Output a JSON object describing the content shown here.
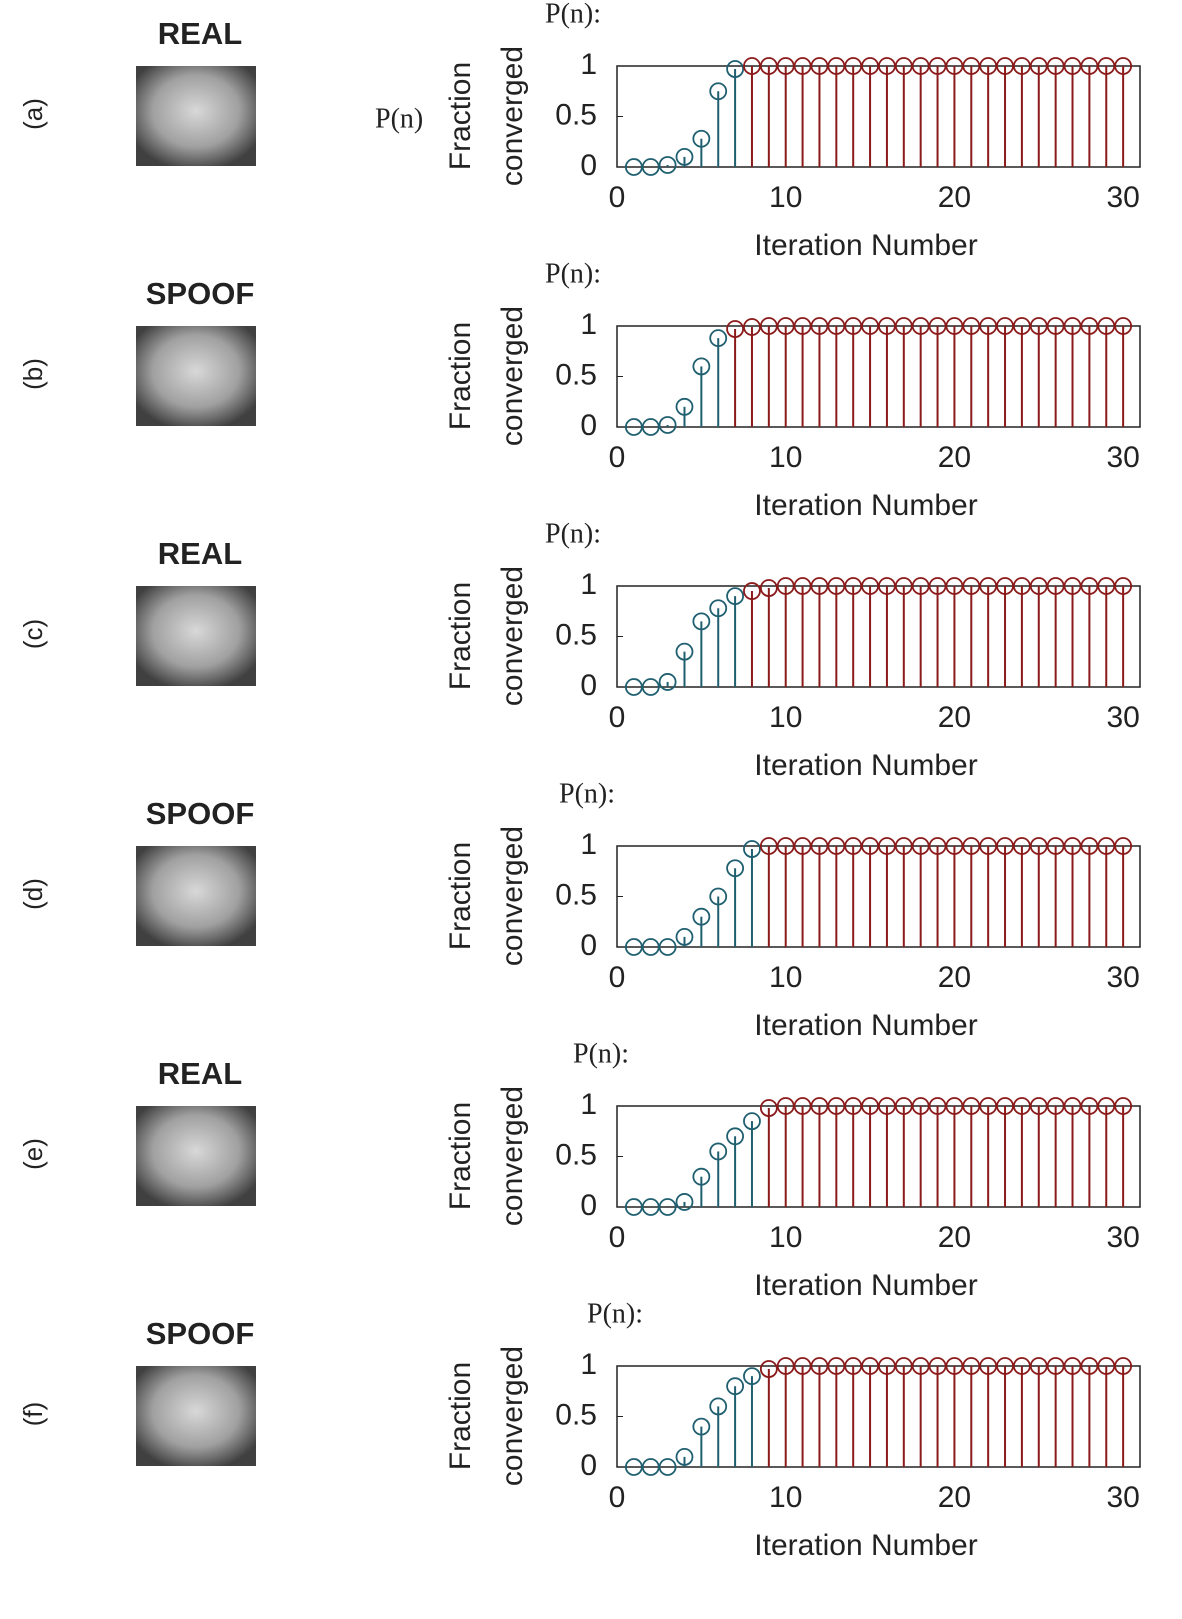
{
  "panels": [
    {
      "label": "(a)",
      "caption": "REAL",
      "side_note": "P(n)"
    },
    {
      "label": "(b)",
      "caption": "SPOOF"
    },
    {
      "label": "(c)",
      "caption": "REAL"
    },
    {
      "label": "(d)",
      "caption": "SPOOF"
    },
    {
      "label": "(e)",
      "caption": "REAL"
    },
    {
      "label": "(f)",
      "caption": "SPOOF"
    }
  ],
  "chart_data": [
    {
      "type": "stem",
      "annotation": "P(n):",
      "ylabel": [
        "Fraction",
        "converged"
      ],
      "xlabel": "Iteration Number",
      "xlim": [
        0,
        31
      ],
      "xticks": [
        0,
        10,
        20,
        30
      ],
      "ylim": [
        0,
        1
      ],
      "yticks": [
        0,
        0.5,
        1
      ],
      "series": [
        {
          "color": "#1f5f70",
          "x": [
            1,
            2,
            3,
            4,
            5,
            6,
            7
          ],
          "values": [
            0,
            0,
            0.02,
            0.1,
            0.28,
            0.75,
            0.97
          ]
        },
        {
          "color": "#8b1a1a",
          "x": [
            8,
            9,
            10,
            11,
            12,
            13,
            14,
            15,
            16,
            17,
            18,
            19,
            20,
            21,
            22,
            23,
            24,
            25,
            26,
            27,
            28,
            29,
            30
          ],
          "values": [
            1,
            1,
            1,
            1,
            1,
            1,
            1,
            1,
            1,
            1,
            1,
            1,
            1,
            1,
            1,
            1,
            1,
            1,
            1,
            1,
            1,
            1,
            1
          ]
        }
      ]
    },
    {
      "type": "stem",
      "annotation": "P(n):",
      "ylabel": [
        "Fraction",
        "converged"
      ],
      "xlabel": "Iteration Number",
      "xlim": [
        0,
        31
      ],
      "xticks": [
        0,
        10,
        20,
        30
      ],
      "ylim": [
        0,
        1
      ],
      "yticks": [
        0,
        0.5,
        1
      ],
      "series": [
        {
          "color": "#1f5f70",
          "x": [
            1,
            2,
            3,
            4,
            5,
            6
          ],
          "values": [
            0,
            0,
            0.02,
            0.2,
            0.6,
            0.88
          ]
        },
        {
          "color": "#8b1a1a",
          "x": [
            7,
            8,
            9,
            10,
            11,
            12,
            13,
            14,
            15,
            16,
            17,
            18,
            19,
            20,
            21,
            22,
            23,
            24,
            25,
            26,
            27,
            28,
            29,
            30
          ],
          "values": [
            0.97,
            0.99,
            1,
            1,
            1,
            1,
            1,
            1,
            1,
            1,
            1,
            1,
            1,
            1,
            1,
            1,
            1,
            1,
            1,
            1,
            1,
            1,
            1,
            1
          ]
        }
      ]
    },
    {
      "type": "stem",
      "annotation": "P(n):",
      "ylabel": [
        "Fraction",
        "converged"
      ],
      "xlabel": "Iteration Number",
      "xlim": [
        0,
        31
      ],
      "xticks": [
        0,
        10,
        20,
        30
      ],
      "ylim": [
        0,
        1
      ],
      "yticks": [
        0,
        0.5,
        1
      ],
      "series": [
        {
          "color": "#1f5f70",
          "x": [
            1,
            2,
            3,
            4,
            5,
            6,
            7
          ],
          "values": [
            0,
            0,
            0.05,
            0.35,
            0.65,
            0.78,
            0.9
          ]
        },
        {
          "color": "#8b1a1a",
          "x": [
            8,
            9,
            10,
            11,
            12,
            13,
            14,
            15,
            16,
            17,
            18,
            19,
            20,
            21,
            22,
            23,
            24,
            25,
            26,
            27,
            28,
            29,
            30
          ],
          "values": [
            0.95,
            0.98,
            1,
            1,
            1,
            1,
            1,
            1,
            1,
            1,
            1,
            1,
            1,
            1,
            1,
            1,
            1,
            1,
            1,
            1,
            1,
            1,
            1
          ]
        }
      ]
    },
    {
      "type": "stem",
      "annotation": "P(n):",
      "ylabel": [
        "Fraction",
        "converged"
      ],
      "xlabel": "Iteration Number",
      "xlim": [
        0,
        31
      ],
      "xticks": [
        0,
        10,
        20,
        30
      ],
      "ylim": [
        0,
        1
      ],
      "yticks": [
        0,
        0.5,
        1
      ],
      "series": [
        {
          "color": "#1f5f70",
          "x": [
            1,
            2,
            3,
            4,
            5,
            6,
            7,
            8
          ],
          "values": [
            0,
            0,
            0,
            0.1,
            0.3,
            0.5,
            0.78,
            0.97
          ]
        },
        {
          "color": "#8b1a1a",
          "x": [
            9,
            10,
            11,
            12,
            13,
            14,
            15,
            16,
            17,
            18,
            19,
            20,
            21,
            22,
            23,
            24,
            25,
            26,
            27,
            28,
            29,
            30
          ],
          "values": [
            1,
            1,
            1,
            1,
            1,
            1,
            1,
            1,
            1,
            1,
            1,
            1,
            1,
            1,
            1,
            1,
            1,
            1,
            1,
            1,
            1,
            1
          ]
        }
      ]
    },
    {
      "type": "stem",
      "annotation": "P(n):",
      "ylabel": [
        "Fraction",
        "converged"
      ],
      "xlabel": "Iteration Number",
      "xlim": [
        0,
        31
      ],
      "xticks": [
        0,
        10,
        20,
        30
      ],
      "ylim": [
        0,
        1
      ],
      "yticks": [
        0,
        0.5,
        1
      ],
      "series": [
        {
          "color": "#1f5f70",
          "x": [
            1,
            2,
            3,
            4,
            5,
            6,
            7,
            8
          ],
          "values": [
            0,
            0,
            0,
            0.05,
            0.3,
            0.55,
            0.7,
            0.85
          ]
        },
        {
          "color": "#8b1a1a",
          "x": [
            9,
            10,
            11,
            12,
            13,
            14,
            15,
            16,
            17,
            18,
            19,
            20,
            21,
            22,
            23,
            24,
            25,
            26,
            27,
            28,
            29,
            30
          ],
          "values": [
            0.98,
            1,
            1,
            1,
            1,
            1,
            1,
            1,
            1,
            1,
            1,
            1,
            1,
            1,
            1,
            1,
            1,
            1,
            1,
            1,
            1,
            1
          ]
        }
      ]
    },
    {
      "type": "stem",
      "annotation": "P(n):",
      "ylabel": [
        "Fraction",
        "converged"
      ],
      "xlabel": "Iteration Number",
      "xlim": [
        0,
        31
      ],
      "xticks": [
        0,
        10,
        20,
        30
      ],
      "ylim": [
        0,
        1
      ],
      "yticks": [
        0,
        0.5,
        1
      ],
      "series": [
        {
          "color": "#1f5f70",
          "x": [
            1,
            2,
            3,
            4,
            5,
            6,
            7,
            8
          ],
          "values": [
            0,
            0,
            0,
            0.1,
            0.4,
            0.6,
            0.8,
            0.9
          ]
        },
        {
          "color": "#8b1a1a",
          "x": [
            9,
            10,
            11,
            12,
            13,
            14,
            15,
            16,
            17,
            18,
            19,
            20,
            21,
            22,
            23,
            24,
            25,
            26,
            27,
            28,
            29,
            30
          ],
          "values": [
            0.97,
            1,
            1,
            1,
            1,
            1,
            1,
            1,
            1,
            1,
            1,
            1,
            1,
            1,
            1,
            1,
            1,
            1,
            1,
            1,
            1,
            1
          ]
        }
      ]
    }
  ]
}
